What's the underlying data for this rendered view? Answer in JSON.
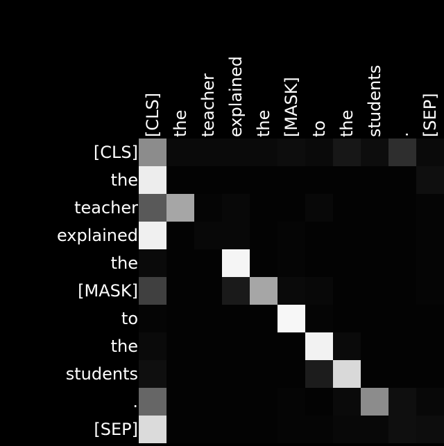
{
  "chart_data": {
    "type": "heatmap",
    "title": "",
    "xlabel": "",
    "ylabel": "",
    "colormap": "grayscale",
    "background": "#000000",
    "x_labels": [
      "[CLS]",
      "the",
      "teacher",
      "explained",
      "the",
      "[MASK]",
      "to",
      "the",
      "students",
      ".",
      "[SEP]"
    ],
    "y_labels": [
      "[CLS]",
      "the",
      "teacher",
      "explained",
      "the",
      "[MASK]",
      "to",
      "the",
      "students",
      ".",
      "[SEP]"
    ],
    "values": [
      [
        0.55,
        0.04,
        0.04,
        0.04,
        0.04,
        0.05,
        0.04,
        0.09,
        0.05,
        0.18,
        0.04
      ],
      [
        0.93,
        0.01,
        0.01,
        0.01,
        0.01,
        0.01,
        0.01,
        0.01,
        0.01,
        0.01,
        0.06
      ],
      [
        0.35,
        0.65,
        0.02,
        0.03,
        0.01,
        0.01,
        0.03,
        0.01,
        0.01,
        0.01,
        0.02
      ],
      [
        0.94,
        0.01,
        0.03,
        0.03,
        0.01,
        0.02,
        0.01,
        0.01,
        0.01,
        0.01,
        0.02
      ],
      [
        0.04,
        0.01,
        0.01,
        0.96,
        0.01,
        0.02,
        0.01,
        0.01,
        0.01,
        0.01,
        0.02
      ],
      [
        0.25,
        0.01,
        0.01,
        0.1,
        0.65,
        0.04,
        0.03,
        0.01,
        0.01,
        0.01,
        0.02
      ],
      [
        0.02,
        0.01,
        0.01,
        0.01,
        0.01,
        0.97,
        0.02,
        0.01,
        0.01,
        0.01,
        0.01
      ],
      [
        0.04,
        0.01,
        0.01,
        0.01,
        0.01,
        0.01,
        0.95,
        0.04,
        0.01,
        0.01,
        0.01
      ],
      [
        0.06,
        0.01,
        0.01,
        0.01,
        0.01,
        0.01,
        0.11,
        0.85,
        0.01,
        0.01,
        0.01
      ],
      [
        0.4,
        0.01,
        0.01,
        0.01,
        0.01,
        0.02,
        0.01,
        0.04,
        0.55,
        0.06,
        0.03
      ],
      [
        0.86,
        0.01,
        0.01,
        0.01,
        0.01,
        0.02,
        0.02,
        0.03,
        0.03,
        0.06,
        0.05
      ]
    ]
  }
}
